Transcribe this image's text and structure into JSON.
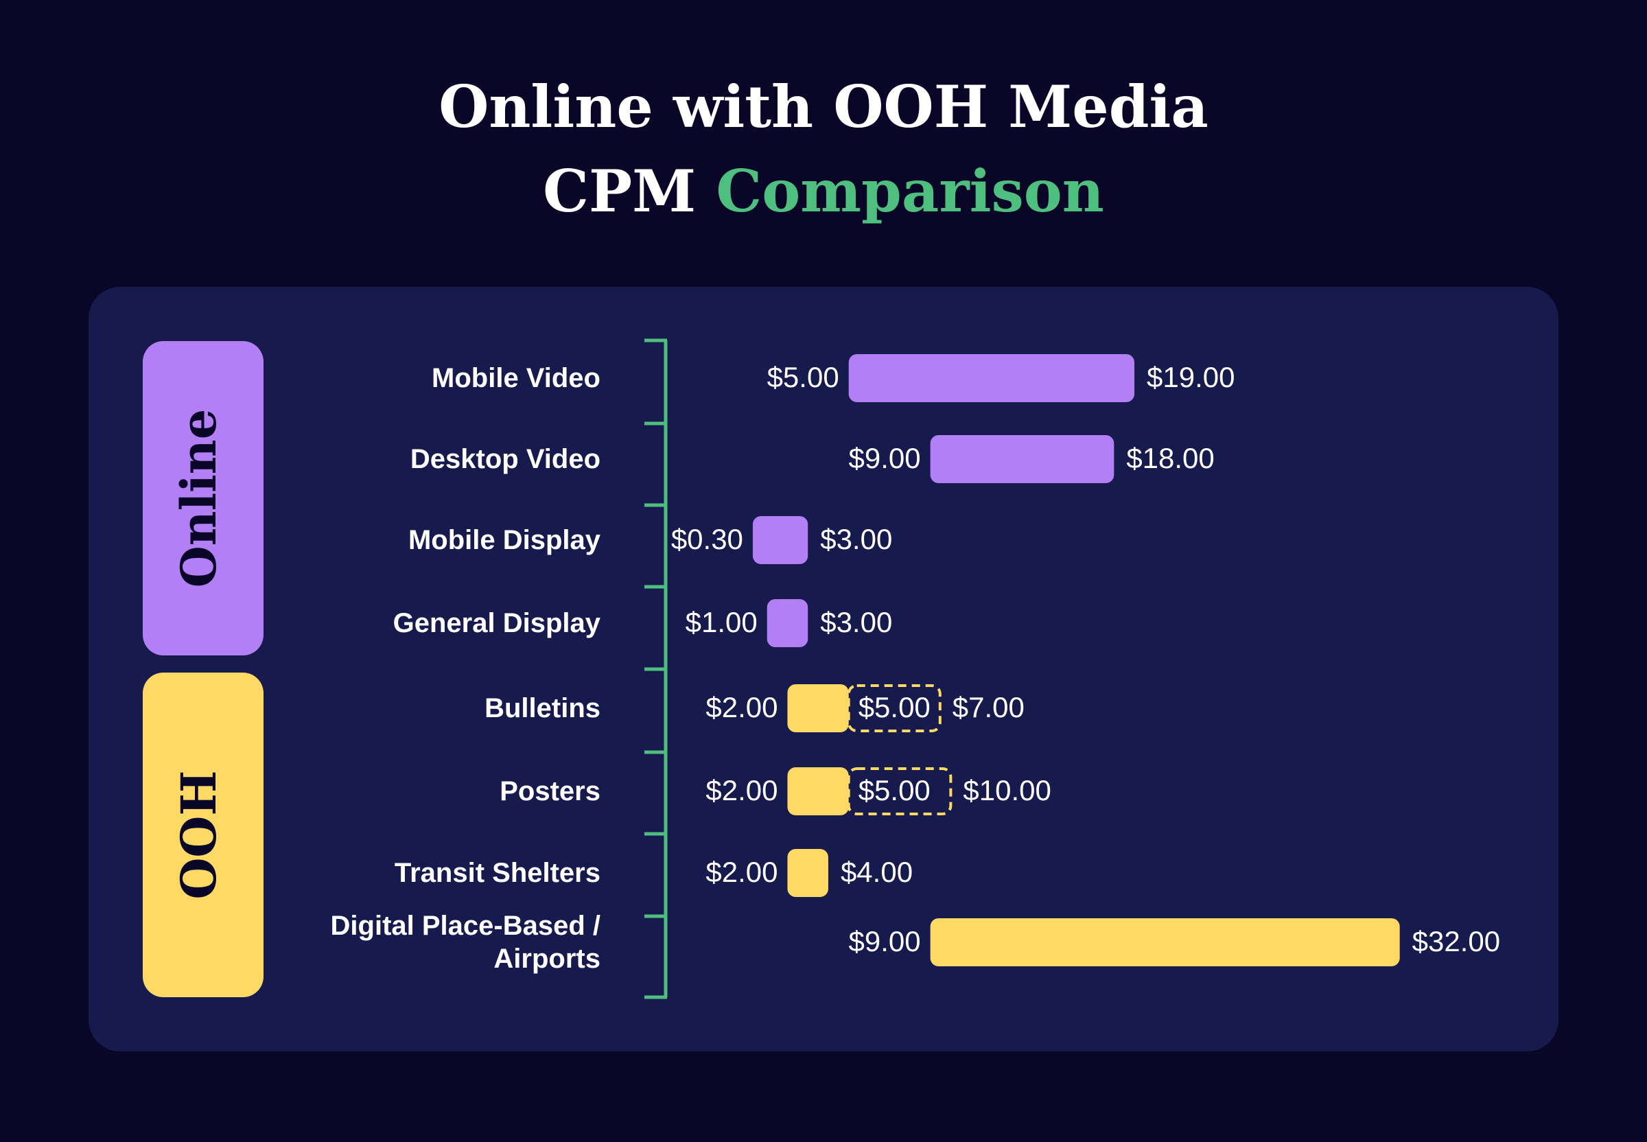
{
  "chart_data": {
    "type": "range_bar",
    "title": "Online with OOH Media",
    "title_line2": "CPM",
    "title_highlight": "Comparison",
    "groups": [
      {
        "name": "Online",
        "color": "#b37ff5",
        "categories": [
          "Mobile Video",
          "Desktop Video",
          "Mobile Display",
          "General Display"
        ],
        "low": [
          5,
          9,
          0.3,
          1
        ],
        "low_labels": [
          "$5.00",
          "$9.00",
          "$0.30",
          "$1.00"
        ],
        "mid": [
          null,
          null,
          null,
          null
        ],
        "mid_labels": [
          null,
          null,
          null,
          null
        ],
        "high": [
          19,
          18,
          3,
          3
        ],
        "high_labels": [
          "$19.00",
          "$18.00",
          "$3.00",
          "$3.00"
        ]
      },
      {
        "name": "OOH",
        "color": "#ffd966",
        "categories": [
          "Bulletins",
          "Posters",
          "Transit Shelters",
          "Digital Place-Based /\nAirports"
        ],
        "low": [
          2,
          2,
          2,
          9
        ],
        "low_labels": [
          "$2.00",
          "$2.00",
          "$2.00",
          "$9.00"
        ],
        "mid": [
          5,
          5,
          null,
          null
        ],
        "mid_labels": [
          "$5.00",
          "$5.00",
          null,
          null
        ],
        "high": [
          7,
          10,
          4,
          32
        ],
        "high_labels": [
          "$7.00",
          "$10.00",
          "$4.00",
          "$32.00"
        ]
      }
    ]
  }
}
